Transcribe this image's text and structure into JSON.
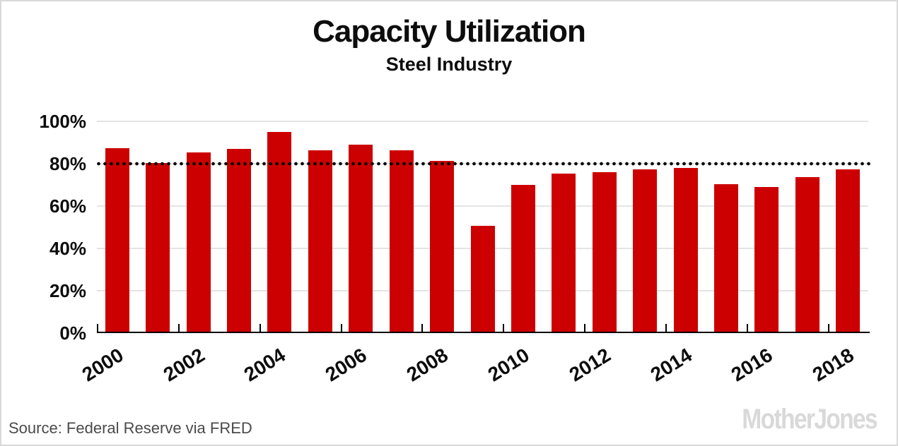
{
  "header": {
    "title": "Capacity Utilization",
    "subtitle": "Steel Industry"
  },
  "chart_data": {
    "type": "bar",
    "title": "Capacity Utilization",
    "subtitle": "Steel Industry",
    "categories": [
      2000,
      2001,
      2002,
      2003,
      2004,
      2005,
      2006,
      2007,
      2008,
      2009,
      2010,
      2011,
      2012,
      2013,
      2014,
      2015,
      2016,
      2017,
      2018
    ],
    "values": [
      87.5,
      80.2,
      85.3,
      86.9,
      94.9,
      86.5,
      89.1,
      86.2,
      81.2,
      50.8,
      69.9,
      75.4,
      75.9,
      77.2,
      77.9,
      70.4,
      69.1,
      73.7,
      77.3
    ],
    "unit": "%",
    "ylim": [
      0,
      100
    ],
    "y_tick_labels": [
      "100%",
      "80%",
      "60%",
      "40%",
      "20%",
      "0%"
    ],
    "x_tick_labels": [
      "2000",
      "2002",
      "2004",
      "2006",
      "2008",
      "2010",
      "2012",
      "2014",
      "2016",
      "2018"
    ],
    "reference_line": {
      "value": 80,
      "style": "dotted"
    },
    "colors": {
      "bar": "#cc0000",
      "grid": "#e4e4e4",
      "reference": "#000000",
      "axis": "#000000"
    },
    "grid": true,
    "legend": "none"
  },
  "footer": {
    "source": "Source: Federal Reserve via FRED",
    "brand": "MotherJones"
  }
}
